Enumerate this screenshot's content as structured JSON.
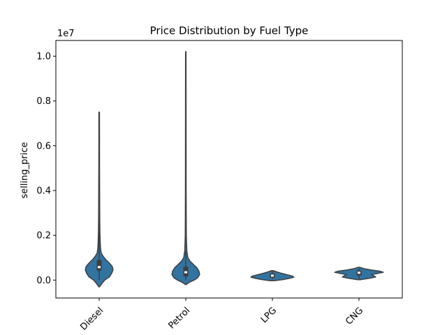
{
  "chart_data": {
    "type": "violin",
    "title": "Price Distribution by Fuel Type",
    "xlabel": "",
    "ylabel": "selling_price",
    "y_offset_label": "1e7",
    "categories": [
      "Diesel",
      "Petrol",
      "LPG",
      "CNG"
    ],
    "ylim": [
      -800000,
      10700000
    ],
    "yticks": [
      0,
      2000000,
      4000000,
      6000000,
      8000000,
      10000000
    ],
    "ytick_labels": [
      "0.0",
      "0.2",
      "0.4",
      "0.6",
      "0.8",
      "1.0"
    ],
    "violin_color": "#3274a1",
    "edge_color": "#3f3f3f",
    "violins": [
      {
        "name": "Diesel",
        "min": -300000,
        "max": 7500000,
        "q1": 420000,
        "median": 580000,
        "q3": 900000,
        "whisker_low": 0,
        "whisker_high": 2600000,
        "profile": [
          [
            -300000,
            0.01
          ],
          [
            -150000,
            0.08
          ],
          [
            0,
            0.16
          ],
          [
            150000,
            0.3
          ],
          [
            300000,
            0.36
          ],
          [
            450000,
            0.4
          ],
          [
            600000,
            0.38
          ],
          [
            750000,
            0.3
          ],
          [
            900000,
            0.2
          ],
          [
            1050000,
            0.12
          ],
          [
            1200000,
            0.06
          ],
          [
            1400000,
            0.04
          ],
          [
            1700000,
            0.03
          ],
          [
            2200000,
            0.02
          ],
          [
            3000000,
            0.015
          ],
          [
            5000000,
            0.01
          ],
          [
            7500000,
            0.008
          ]
        ]
      },
      {
        "name": "Petrol",
        "min": -200000,
        "max": 10200000,
        "q1": 160000,
        "median": 350000,
        "q3": 600000,
        "whisker_low": 0,
        "whisker_high": 1300000,
        "profile": [
          [
            -200000,
            0.01
          ],
          [
            -100000,
            0.1
          ],
          [
            0,
            0.24
          ],
          [
            100000,
            0.34
          ],
          [
            250000,
            0.4
          ],
          [
            400000,
            0.38
          ],
          [
            550000,
            0.32
          ],
          [
            700000,
            0.22
          ],
          [
            850000,
            0.12
          ],
          [
            1000000,
            0.06
          ],
          [
            1300000,
            0.03
          ],
          [
            2000000,
            0.015
          ],
          [
            4000000,
            0.01
          ],
          [
            7000000,
            0.008
          ],
          [
            10200000,
            0.006
          ]
        ]
      },
      {
        "name": "LPG",
        "min": -30000,
        "max": 420000,
        "q1": 110000,
        "median": 200000,
        "q3": 300000,
        "whisker_low": 40000,
        "whisker_high": 400000,
        "profile": [
          [
            -30000,
            0.05
          ],
          [
            20000,
            0.3
          ],
          [
            80000,
            0.5
          ],
          [
            130000,
            0.62
          ],
          [
            180000,
            0.58
          ],
          [
            230000,
            0.45
          ],
          [
            280000,
            0.32
          ],
          [
            330000,
            0.2
          ],
          [
            380000,
            0.1
          ],
          [
            420000,
            0.04
          ]
        ]
      },
      {
        "name": "CNG",
        "min": 20000,
        "max": 570000,
        "q1": 200000,
        "median": 330000,
        "q3": 430000,
        "whisker_low": 60000,
        "whisker_high": 520000,
        "profile": [
          [
            20000,
            0.05
          ],
          [
            80000,
            0.3
          ],
          [
            140000,
            0.48
          ],
          [
            200000,
            0.42
          ],
          [
            250000,
            0.36
          ],
          [
            300000,
            0.55
          ],
          [
            350000,
            0.7
          ],
          [
            400000,
            0.6
          ],
          [
            450000,
            0.35
          ],
          [
            500000,
            0.18
          ],
          [
            540000,
            0.08
          ],
          [
            570000,
            0.03
          ]
        ]
      }
    ]
  }
}
